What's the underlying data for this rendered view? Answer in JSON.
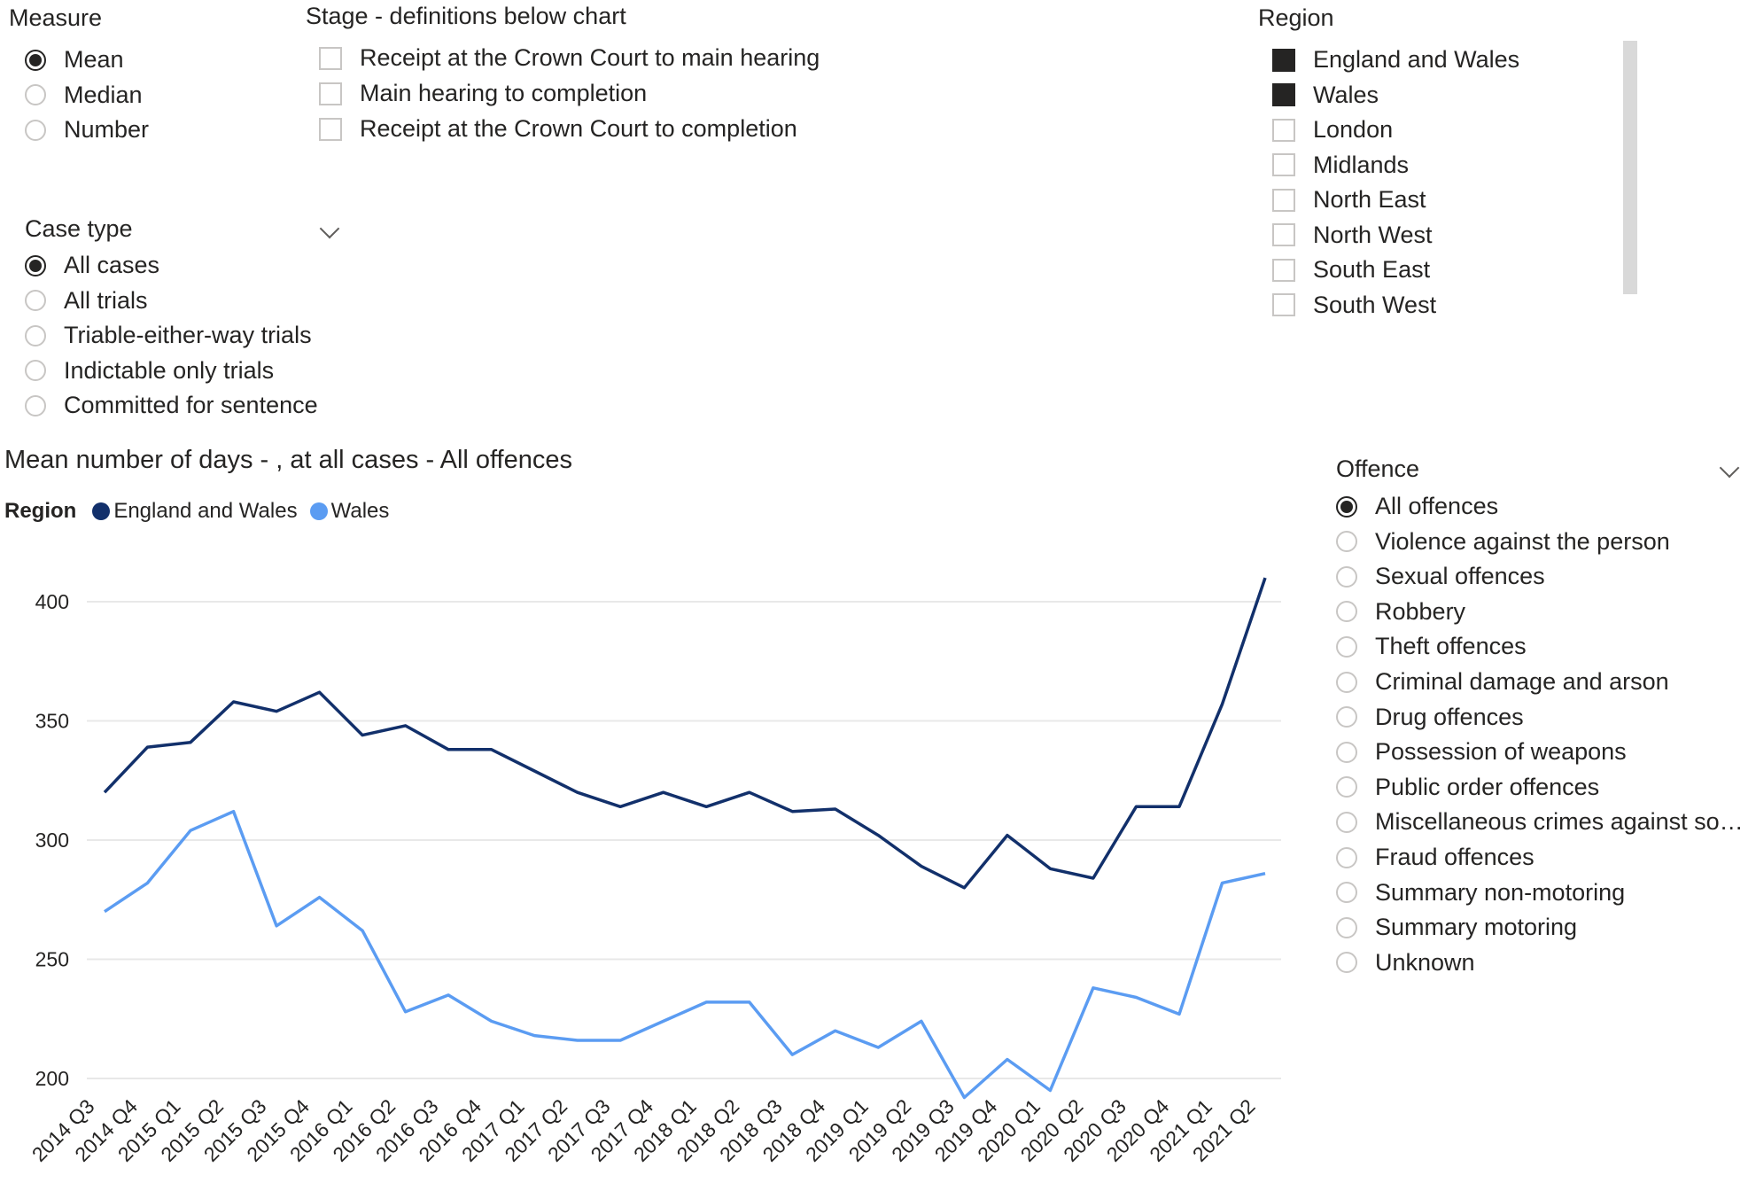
{
  "measure": {
    "title": "Measure",
    "options": [
      {
        "label": "Mean",
        "selected": true
      },
      {
        "label": "Median",
        "selected": false
      },
      {
        "label": "Number",
        "selected": false
      }
    ]
  },
  "stage": {
    "title": "Stage - definitions below chart",
    "options": [
      {
        "label": "Receipt at the Crown Court to main hearing",
        "checked": false
      },
      {
        "label": "Main hearing to completion",
        "checked": false
      },
      {
        "label": "Receipt at the Crown Court to completion",
        "checked": false
      }
    ]
  },
  "region": {
    "title": "Region",
    "options": [
      {
        "label": "England and Wales",
        "checked": true
      },
      {
        "label": "Wales",
        "checked": true
      },
      {
        "label": "London",
        "checked": false
      },
      {
        "label": "Midlands",
        "checked": false
      },
      {
        "label": "North East",
        "checked": false
      },
      {
        "label": "North West",
        "checked": false
      },
      {
        "label": "South East",
        "checked": false
      },
      {
        "label": "South West",
        "checked": false
      }
    ]
  },
  "case_type": {
    "title": "Case type",
    "options": [
      {
        "label": "All cases",
        "selected": true
      },
      {
        "label": "All trials",
        "selected": false
      },
      {
        "label": "Triable-either-way trials",
        "selected": false
      },
      {
        "label": "Indictable only trials",
        "selected": false
      },
      {
        "label": "Committed for sentence",
        "selected": false
      }
    ]
  },
  "offence": {
    "title": "Offence",
    "options": [
      {
        "label": "All offences",
        "selected": true
      },
      {
        "label": "Violence against the person",
        "selected": false
      },
      {
        "label": "Sexual offences",
        "selected": false
      },
      {
        "label": "Robbery",
        "selected": false
      },
      {
        "label": "Theft offences",
        "selected": false
      },
      {
        "label": "Criminal damage and arson",
        "selected": false
      },
      {
        "label": "Drug offences",
        "selected": false
      },
      {
        "label": "Possession of weapons",
        "selected": false
      },
      {
        "label": "Public order offences",
        "selected": false
      },
      {
        "label": "Miscellaneous crimes against so…",
        "selected": false
      },
      {
        "label": "Fraud offences",
        "selected": false
      },
      {
        "label": "Summary non-motoring",
        "selected": false
      },
      {
        "label": "Summary motoring",
        "selected": false
      },
      {
        "label": "Unknown",
        "selected": false
      }
    ]
  },
  "colors": {
    "england_and_wales": "#12306b",
    "wales": "#5b9cf2",
    "gridline": "#e8e8e8"
  },
  "chart_data": {
    "type": "line",
    "title": "Mean number of days - , at all cases - All offences",
    "legend_title": "Region",
    "legend_position": "top-left",
    "grid": true,
    "ylim": [
      190,
      420
    ],
    "yticks": [
      200,
      250,
      300,
      350,
      400
    ],
    "x": [
      "2014 Q3",
      "2014 Q4",
      "2015 Q1",
      "2015 Q2",
      "2015 Q3",
      "2015 Q4",
      "2016 Q1",
      "2016 Q2",
      "2016 Q3",
      "2016 Q4",
      "2017 Q1",
      "2017 Q2",
      "2017 Q3",
      "2017 Q4",
      "2018 Q1",
      "2018 Q2",
      "2018 Q3",
      "2018 Q4",
      "2019 Q1",
      "2019 Q2",
      "2019 Q3",
      "2019 Q4",
      "2020 Q1",
      "2020 Q2",
      "2020 Q3",
      "2020 Q4",
      "2021 Q1",
      "2021 Q2"
    ],
    "series": [
      {
        "name": "England and Wales",
        "color": "#12306b",
        "values": [
          320,
          339,
          341,
          358,
          354,
          362,
          344,
          348,
          338,
          338,
          329,
          320,
          314,
          320,
          314,
          320,
          312,
          313,
          302,
          289,
          280,
          302,
          288,
          284,
          314,
          314,
          357,
          410
        ]
      },
      {
        "name": "Wales",
        "color": "#5b9cf2",
        "values": [
          270,
          282,
          304,
          312,
          264,
          276,
          262,
          228,
          235,
          224,
          218,
          216,
          216,
          224,
          232,
          232,
          210,
          220,
          213,
          224,
          192,
          208,
          195,
          238,
          234,
          227,
          282,
          286
        ]
      }
    ]
  }
}
